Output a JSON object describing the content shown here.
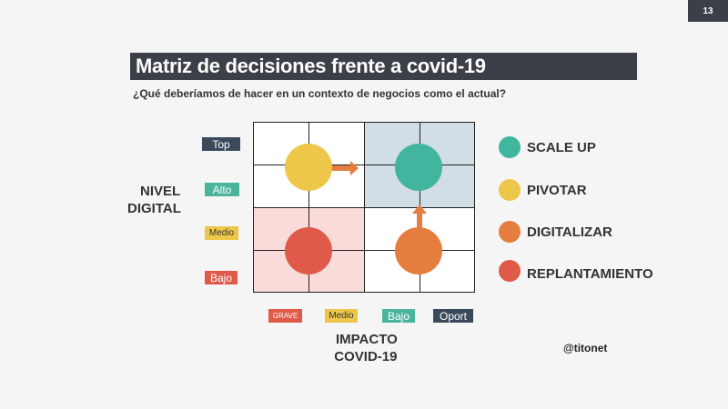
{
  "page_number": "13",
  "title": "Matriz de decisiones frente a covid-19",
  "subtitle": "¿Qué deberíamos de hacer en un contexto de negocios como el actual?",
  "y_axis": {
    "title_line1": "NIVEL",
    "title_line2": "DIGITAL",
    "levels": [
      "Top",
      "Alto",
      "Medio",
      "Bajo"
    ]
  },
  "x_axis": {
    "title_line1": "IMPACTO",
    "title_line2": "COVID-19",
    "levels": [
      "GRAVE",
      "Medio",
      "Bajo",
      "Oport"
    ]
  },
  "legend": [
    {
      "label": "SCALE UP",
      "color": "#42b59f"
    },
    {
      "label": "PIVOTAR",
      "color": "#eec74a"
    },
    {
      "label": "DIGITALIZAR",
      "color": "#e57d3e"
    },
    {
      "label": "REPLANTAMIENTO",
      "color": "#e05a4a"
    }
  ],
  "colors": {
    "dark": "#3b3f47",
    "top": "#3b4a5b",
    "alto": "#4bb49c",
    "medio": "#eec74a",
    "bajo": "#e05a4a",
    "quad_top_right": "#d2dee6",
    "quad_bottom_left": "#f9dcd9",
    "arrow": "#e57d3e"
  },
  "handle": "@titonet"
}
